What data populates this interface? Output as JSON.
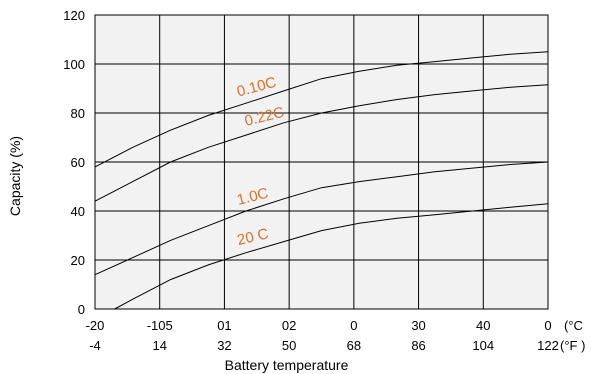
{
  "chart_data": {
    "type": "line",
    "xlabel": "Battery  temperature",
    "ylabel": "Capacity   (%)",
    "ylim": [
      0,
      120
    ],
    "yticks": [
      "0",
      "20",
      "40",
      "60",
      "80",
      "100",
      "120"
    ],
    "xlim": [
      -20,
      40
    ],
    "xticks_c": [
      "-20",
      "-105",
      "01",
      "02",
      "0",
      "30",
      "40",
      "0"
    ],
    "xticks_f": [
      "-4",
      "14",
      "32",
      "50",
      "68",
      "86",
      "104",
      "122"
    ],
    "x_unit_c": "(°C",
    "x_unit_f": "(°F )",
    "grid": true,
    "plot_background": "#f2f2f2",
    "line_color": "#000000",
    "label_color": "#d9722e",
    "series": [
      {
        "name": "0.10C",
        "x": [
          -20,
          -15,
          -10,
          -5,
          0,
          5,
          10,
          15,
          20,
          25,
          30,
          35,
          40
        ],
        "y": [
          58,
          66,
          73,
          79,
          84,
          89,
          94,
          97,
          99.5,
          101,
          102.5,
          104,
          105
        ]
      },
      {
        "name": "0.22C",
        "x": [
          -20,
          -15,
          -10,
          -5,
          0,
          5,
          10,
          15,
          20,
          25,
          30,
          35,
          40
        ],
        "y": [
          44,
          52,
          60,
          66,
          71,
          76,
          80,
          83,
          85.5,
          87.5,
          89,
          90.5,
          91.5
        ]
      },
      {
        "name": "1.0C",
        "x": [
          -20,
          -15,
          -10,
          -5,
          0,
          5,
          10,
          15,
          20,
          25,
          30,
          35,
          40
        ],
        "y": [
          14,
          21,
          28,
          34,
          40,
          45,
          49.5,
          52,
          54,
          56,
          57.5,
          59,
          60
        ]
      },
      {
        "name": "20  C",
        "x": [
          -18,
          -15,
          -10,
          -5,
          0,
          5,
          10,
          15,
          20,
          25,
          30,
          35,
          40
        ],
        "y": [
          -1,
          4,
          12,
          18,
          23,
          27.5,
          32,
          35,
          37,
          38.5,
          40,
          41.5,
          43
        ]
      }
    ]
  }
}
